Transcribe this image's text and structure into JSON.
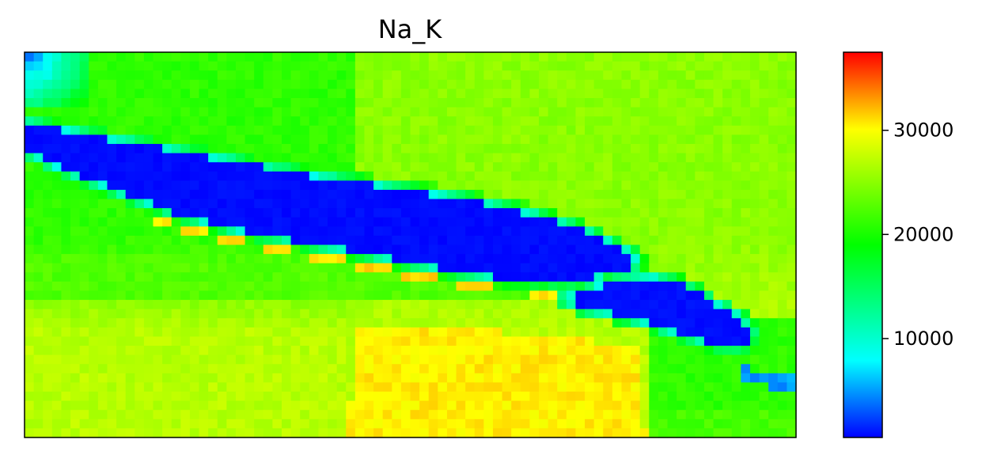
{
  "chart_data": {
    "type": "heatmap",
    "title": "Na_K",
    "xlabel": "",
    "ylabel": "",
    "axes_ticks_visible": false,
    "grid": false,
    "colormap": "gist_rainbow_r",
    "colorbar": {
      "vmin": 500,
      "vmax": 37500,
      "ticks": [
        10000,
        20000,
        30000
      ],
      "tick_labels": [
        "10000",
        "20000",
        "30000"
      ],
      "position": "right"
    },
    "grid_size": {
      "cols": 84,
      "rows": 42
    },
    "regions": [
      {
        "name": "upper-left low strip",
        "value": 3000
      },
      {
        "name": "main dark lens (upper center)",
        "value": 800
      },
      {
        "name": "lower-right dark lens",
        "value": 900
      },
      {
        "name": "small low feature (bottom right)",
        "value": 5000
      },
      {
        "name": "upper background",
        "value": 21000
      },
      {
        "name": "upper-right background",
        "value": 25000
      },
      {
        "name": "lower background",
        "value": 27000
      },
      {
        "name": "lower-center hot zone",
        "value": 30500
      },
      {
        "name": "orange seam under main lens",
        "value": 31000
      }
    ]
  }
}
